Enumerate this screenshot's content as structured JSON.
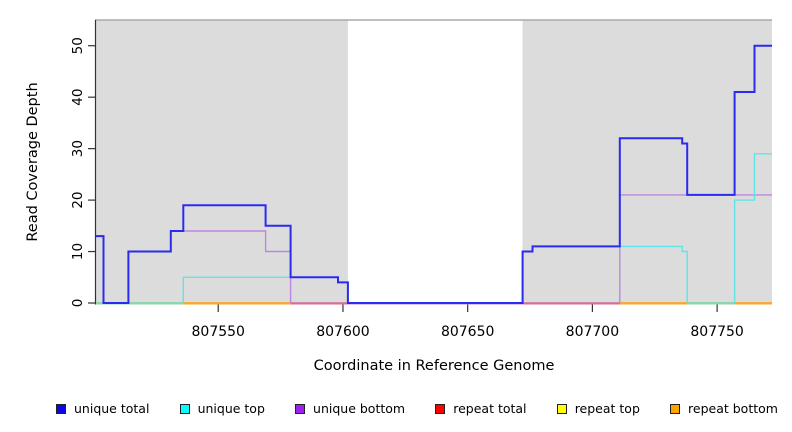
{
  "chart_data": {
    "type": "line",
    "subtype": "step",
    "title": "",
    "xlabel": "Coordinate in Reference Genome",
    "ylabel": "Read Coverage Depth",
    "xlim": [
      807501,
      807772
    ],
    "ylim": [
      0,
      55
    ],
    "x_ticks": [
      807550,
      807600,
      807650,
      807700,
      807750
    ],
    "y_ticks": [
      0,
      10,
      20,
      30,
      40,
      50
    ],
    "grid": false,
    "legend_position": "bottom",
    "band_color": "#dcdcdc",
    "band_top_border": "#a9a9a9",
    "axis_color": "#333333",
    "shaded_regions": [
      {
        "from": 807501,
        "to": 807602
      },
      {
        "from": 807672,
        "to": 807772
      }
    ],
    "x_end": 807772,
    "series": [
      {
        "name": "repeat total",
        "color": "#dd3355",
        "width": 1.3,
        "points": [
          [
            807501,
            0
          ]
        ]
      },
      {
        "name": "repeat top",
        "color": "#eedd33",
        "width": 1.3,
        "points": [
          [
            807501,
            0
          ]
        ]
      },
      {
        "name": "repeat bottom",
        "color": "#ffa520",
        "width": 1.5,
        "points": [
          [
            807501,
            0
          ]
        ]
      },
      {
        "name": "unique bottom",
        "color": "#be86df",
        "width": 1.4,
        "points": [
          [
            807501,
            13
          ],
          [
            807504,
            0
          ],
          [
            807514,
            10
          ],
          [
            807531,
            14
          ],
          [
            807569,
            10
          ],
          [
            807579,
            0
          ],
          [
            807711,
            21
          ]
        ]
      },
      {
        "name": "unique top",
        "color": "#5fe4e8",
        "width": 1.4,
        "points": [
          [
            807501,
            0
          ],
          [
            807536,
            5
          ],
          [
            807598,
            4
          ],
          [
            807602,
            0
          ],
          [
            807672,
            10
          ],
          [
            807676,
            11
          ],
          [
            807736,
            10
          ],
          [
            807738,
            0
          ],
          [
            807757,
            20
          ],
          [
            807765,
            29
          ]
        ]
      },
      {
        "name": "unique total",
        "color": "#2b2bee",
        "width": 2,
        "points": [
          [
            807501,
            13
          ],
          [
            807504,
            0
          ],
          [
            807514,
            10
          ],
          [
            807531,
            14
          ],
          [
            807536,
            19
          ],
          [
            807569,
            15
          ],
          [
            807579,
            5
          ],
          [
            807598,
            4
          ],
          [
            807602,
            0
          ],
          [
            807672,
            10
          ],
          [
            807676,
            11
          ],
          [
            807711,
            32
          ],
          [
            807736,
            31
          ],
          [
            807738,
            21
          ],
          [
            807757,
            41
          ],
          [
            807765,
            50
          ]
        ]
      }
    ],
    "zero_overdraw": [
      {
        "from": 807501,
        "to": 807536,
        "color": "#8fd6a0"
      },
      {
        "from": 807536,
        "to": 807579,
        "color": "#ffa520"
      },
      {
        "from": 807579,
        "to": 807602,
        "color": "#e0698c"
      },
      {
        "from": 807602,
        "to": 807672,
        "color": "#be86df"
      },
      {
        "from": 807672,
        "to": 807711,
        "color": "#e0698c"
      },
      {
        "from": 807711,
        "to": 807738,
        "color": "#ffa520"
      },
      {
        "from": 807738,
        "to": 807757,
        "color": "#8fd6a0"
      },
      {
        "from": 807757,
        "to": 807772,
        "color": "#ffa520"
      }
    ],
    "legend": [
      {
        "label": "unique total",
        "color": "#0a0adf"
      },
      {
        "label": "unique top",
        "color": "#00ffff"
      },
      {
        "label": "unique bottom",
        "color": "#a020f0"
      },
      {
        "label": "repeat total",
        "color": "#ff0000"
      },
      {
        "label": "repeat top",
        "color": "#ffff00"
      },
      {
        "label": "repeat bottom",
        "color": "#ffa500"
      }
    ]
  }
}
